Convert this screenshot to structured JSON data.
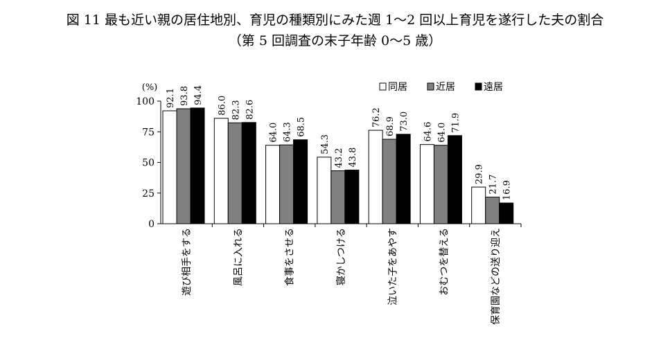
{
  "title": "図 11 最も近い親の居住地別、育児の種類別にみた週 1～2 回以上育児を遂行した夫の割合",
  "subtitle": "（第 5 回調査の末子年齢 0～5 歳）",
  "chart_data": {
    "type": "bar",
    "ylabel": "(%)",
    "ylim": [
      0,
      100
    ],
    "yticks": [
      0,
      25,
      50,
      75,
      100
    ],
    "legend_position": "top-right",
    "categories": [
      "遊び相手をする",
      "風呂に入れる",
      "食事をさせる",
      "寝かしつける",
      "泣いた子をあやす",
      "おむつを替える",
      "保育園などの送り迎え"
    ],
    "series": [
      {
        "name": "同居",
        "color": "#ffffff",
        "values": [
          92.1,
          86.0,
          64.0,
          54.3,
          76.2,
          64.6,
          29.9
        ]
      },
      {
        "name": "近居",
        "color": "#808080",
        "values": [
          93.8,
          82.3,
          64.3,
          43.2,
          68.9,
          64.0,
          21.7
        ]
      },
      {
        "name": "遠居",
        "color": "#000000",
        "values": [
          94.4,
          82.6,
          68.5,
          43.8,
          73.0,
          71.9,
          16.9
        ]
      }
    ]
  }
}
